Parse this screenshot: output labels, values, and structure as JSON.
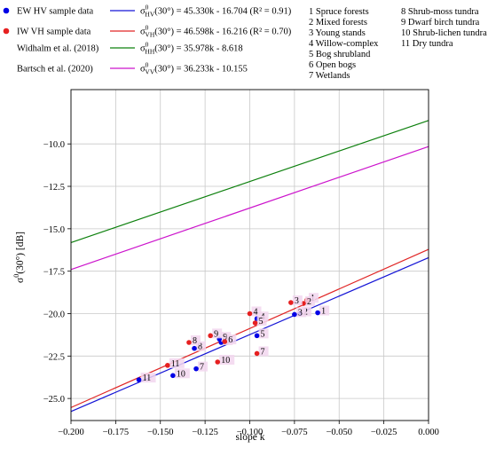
{
  "chart_data": {
    "type": "scatter",
    "xlabel": "slope k",
    "ylabel_base": "σ",
    "ylabel_sup": "0",
    "ylabel_rest": "(30°) [dB]",
    "xlim": [
      -0.2,
      0.0
    ],
    "ylim": [
      -26.3,
      -6.8
    ],
    "x_ticks": [
      -0.2,
      -0.175,
      -0.15,
      -0.125,
      -0.1,
      -0.075,
      -0.05,
      -0.025,
      0.0
    ],
    "x_tick_labels": [
      "-0.200",
      "-0.175",
      "-0.150",
      "-0.125",
      "-0.100",
      "-0.075",
      "-0.050",
      "-0.025",
      "0.000"
    ],
    "y_ticks": [
      -25.0,
      -22.5,
      -20.0,
      -17.5,
      -15.0,
      -12.5,
      -10.0
    ],
    "y_tick_labels": [
      "-25.0",
      "-22.5",
      "-20.0",
      "-17.5",
      "-15.0",
      "-12.5",
      "-10.0"
    ],
    "grid": true,
    "scatter_series": [
      {
        "name": "EW HV sample data",
        "color": "#0000e6",
        "points": [
          {
            "label": "1",
            "x": -0.062,
            "y": -19.95
          },
          {
            "label": "2",
            "x": -0.072,
            "y": -20.0
          },
          {
            "label": "3",
            "x": -0.075,
            "y": -20.05
          },
          {
            "label": "4",
            "x": -0.096,
            "y": -20.3
          },
          {
            "label": "5",
            "x": -0.096,
            "y": -21.3
          },
          {
            "label": "6",
            "x": -0.116,
            "y": -21.7
          },
          {
            "label": "7",
            "x": -0.13,
            "y": -23.25
          },
          {
            "label": "8",
            "x": -0.131,
            "y": -22.05
          },
          {
            "label": "9",
            "x": -0.117,
            "y": -21.5
          },
          {
            "label": "10",
            "x": -0.143,
            "y": -23.65
          },
          {
            "label": "11",
            "x": -0.162,
            "y": -23.9
          }
        ]
      },
      {
        "name": "IW VH sample data",
        "color": "#e62020",
        "points": [
          {
            "label": "1",
            "x": -0.068,
            "y": -19.2
          },
          {
            "label": "2",
            "x": -0.07,
            "y": -19.4
          },
          {
            "label": "3",
            "x": -0.077,
            "y": -19.35
          },
          {
            "label": "4",
            "x": -0.1,
            "y": -20.0
          },
          {
            "label": "5",
            "x": -0.097,
            "y": -20.55
          },
          {
            "label": "6",
            "x": -0.114,
            "y": -21.65
          },
          {
            "label": "7",
            "x": -0.096,
            "y": -22.35
          },
          {
            "label": "8",
            "x": -0.134,
            "y": -21.7
          },
          {
            "label": "9",
            "x": -0.122,
            "y": -21.3
          },
          {
            "label": "10",
            "x": -0.118,
            "y": -22.85
          },
          {
            "label": "11",
            "x": -0.146,
            "y": -23.05
          }
        ]
      }
    ],
    "line_series": [
      {
        "name": "45.330k - 16.704 (R² = 0.91)",
        "sub": "HV",
        "slope": 45.33,
        "intercept": -16.704,
        "color": "#1515d6"
      },
      {
        "name": "46.598k - 16.216 (R² = 0.70)",
        "sub": "VH",
        "slope": 46.598,
        "intercept": -16.216,
        "color": "#e02626"
      },
      {
        "name": "35.978k - 8.618",
        "sub": "HH",
        "slope": 35.978,
        "intercept": -8.618,
        "color": "#0d800d"
      },
      {
        "name": "36.233k - 10.155",
        "sub": "VV",
        "slope": 36.233,
        "intercept": -10.155,
        "color": "#cc14cc"
      }
    ],
    "line_labels": [
      "Widhalm et al. (2018)",
      "Bartsch et al. (2020)"
    ],
    "line_symbol": {
      "base": "σ",
      "sup": "0",
      "arg": "(30°)",
      "sep": " = "
    },
    "classes": [
      "1 Spruce forests",
      "2 Mixed forests",
      "3 Young stands",
      "4 Willow-complex",
      "5 Bog shrubland",
      "6 Open bogs",
      "7 Wetlands",
      "8 Shrub-moss tundra",
      "9 Dwarf birch tundra",
      "10 Shrub-lichen tundra",
      "11 Dry tundra"
    ]
  }
}
